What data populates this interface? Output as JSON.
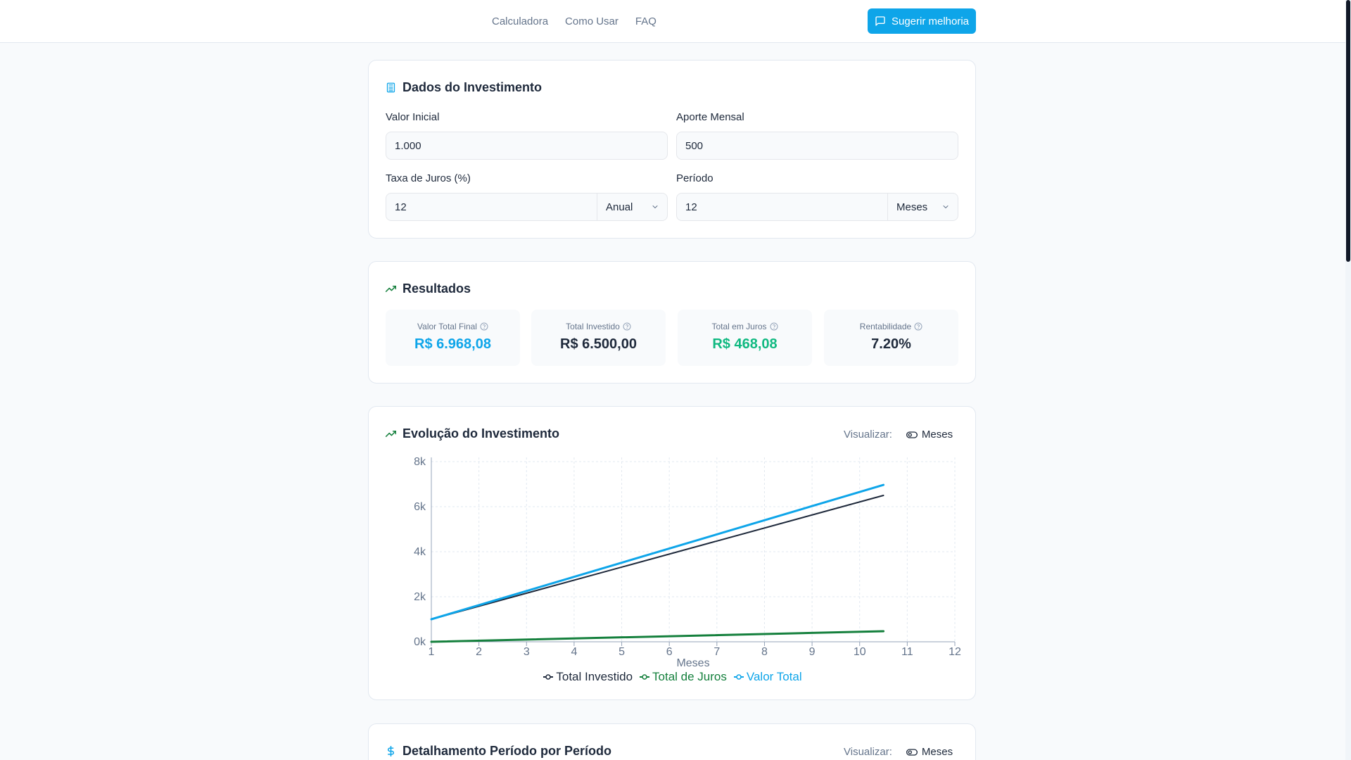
{
  "nav": {
    "items": [
      "Calculadora",
      "Como Usar",
      "FAQ"
    ],
    "suggest_label": "Sugerir melhoria"
  },
  "inputs_card": {
    "title": "Dados do Investimento",
    "initial_value_label": "Valor Inicial",
    "initial_value": "1.000",
    "monthly_label": "Aporte Mensal",
    "monthly_value": "500",
    "rate_label": "Taxa de Juros (%)",
    "rate_value": "12",
    "rate_period": "Anual",
    "period_label": "Período",
    "period_value": "12",
    "period_unit": "Meses"
  },
  "results": {
    "title": "Resultados",
    "stats": [
      {
        "label": "Valor Total Final",
        "value": "R$ 6.968,08",
        "color": "#0ea5e9"
      },
      {
        "label": "Total Investido",
        "value": "R$ 6.500,00",
        "color": "#1e293b"
      },
      {
        "label": "Total em Juros",
        "value": "R$ 468,08",
        "color": "#10b981"
      },
      {
        "label": "Rentabilidade",
        "value": "7.20%",
        "color": "#1e293b"
      }
    ]
  },
  "evolution": {
    "title": "Evolução do Investimento",
    "visualize_label": "Visualizar:",
    "visualize_option": "Meses"
  },
  "details": {
    "title": "Detalhamento Período por Período",
    "visualize_label": "Visualizar:",
    "visualize_option": "Meses"
  },
  "colors": {
    "accent": "#0ea5e9",
    "invested": "#1e293b",
    "interest": "#15803d",
    "total": "#0ea5e9"
  },
  "chart_data": {
    "type": "line",
    "xlabel": "Meses",
    "ylabel": "",
    "x_ticks": [
      "1",
      "2",
      "3",
      "4",
      "5",
      "6",
      "7",
      "8",
      "9",
      "10",
      "11",
      "12"
    ],
    "y_ticks": [
      "0k",
      "2k",
      "4k",
      "6k",
      "8k"
    ],
    "ylim": [
      0,
      8000
    ],
    "xlim": [
      1,
      12
    ],
    "grid": true,
    "legend": "bottom",
    "x": [
      1,
      10.5
    ],
    "series": [
      {
        "name": "Total Investido",
        "color": "#1e293b",
        "values": [
          1000,
          6500
        ]
      },
      {
        "name": "Total de Juros",
        "color": "#15803d",
        "values": [
          0,
          468
        ]
      },
      {
        "name": "Valor Total",
        "color": "#0ea5e9",
        "values": [
          1000,
          6968
        ]
      }
    ]
  }
}
